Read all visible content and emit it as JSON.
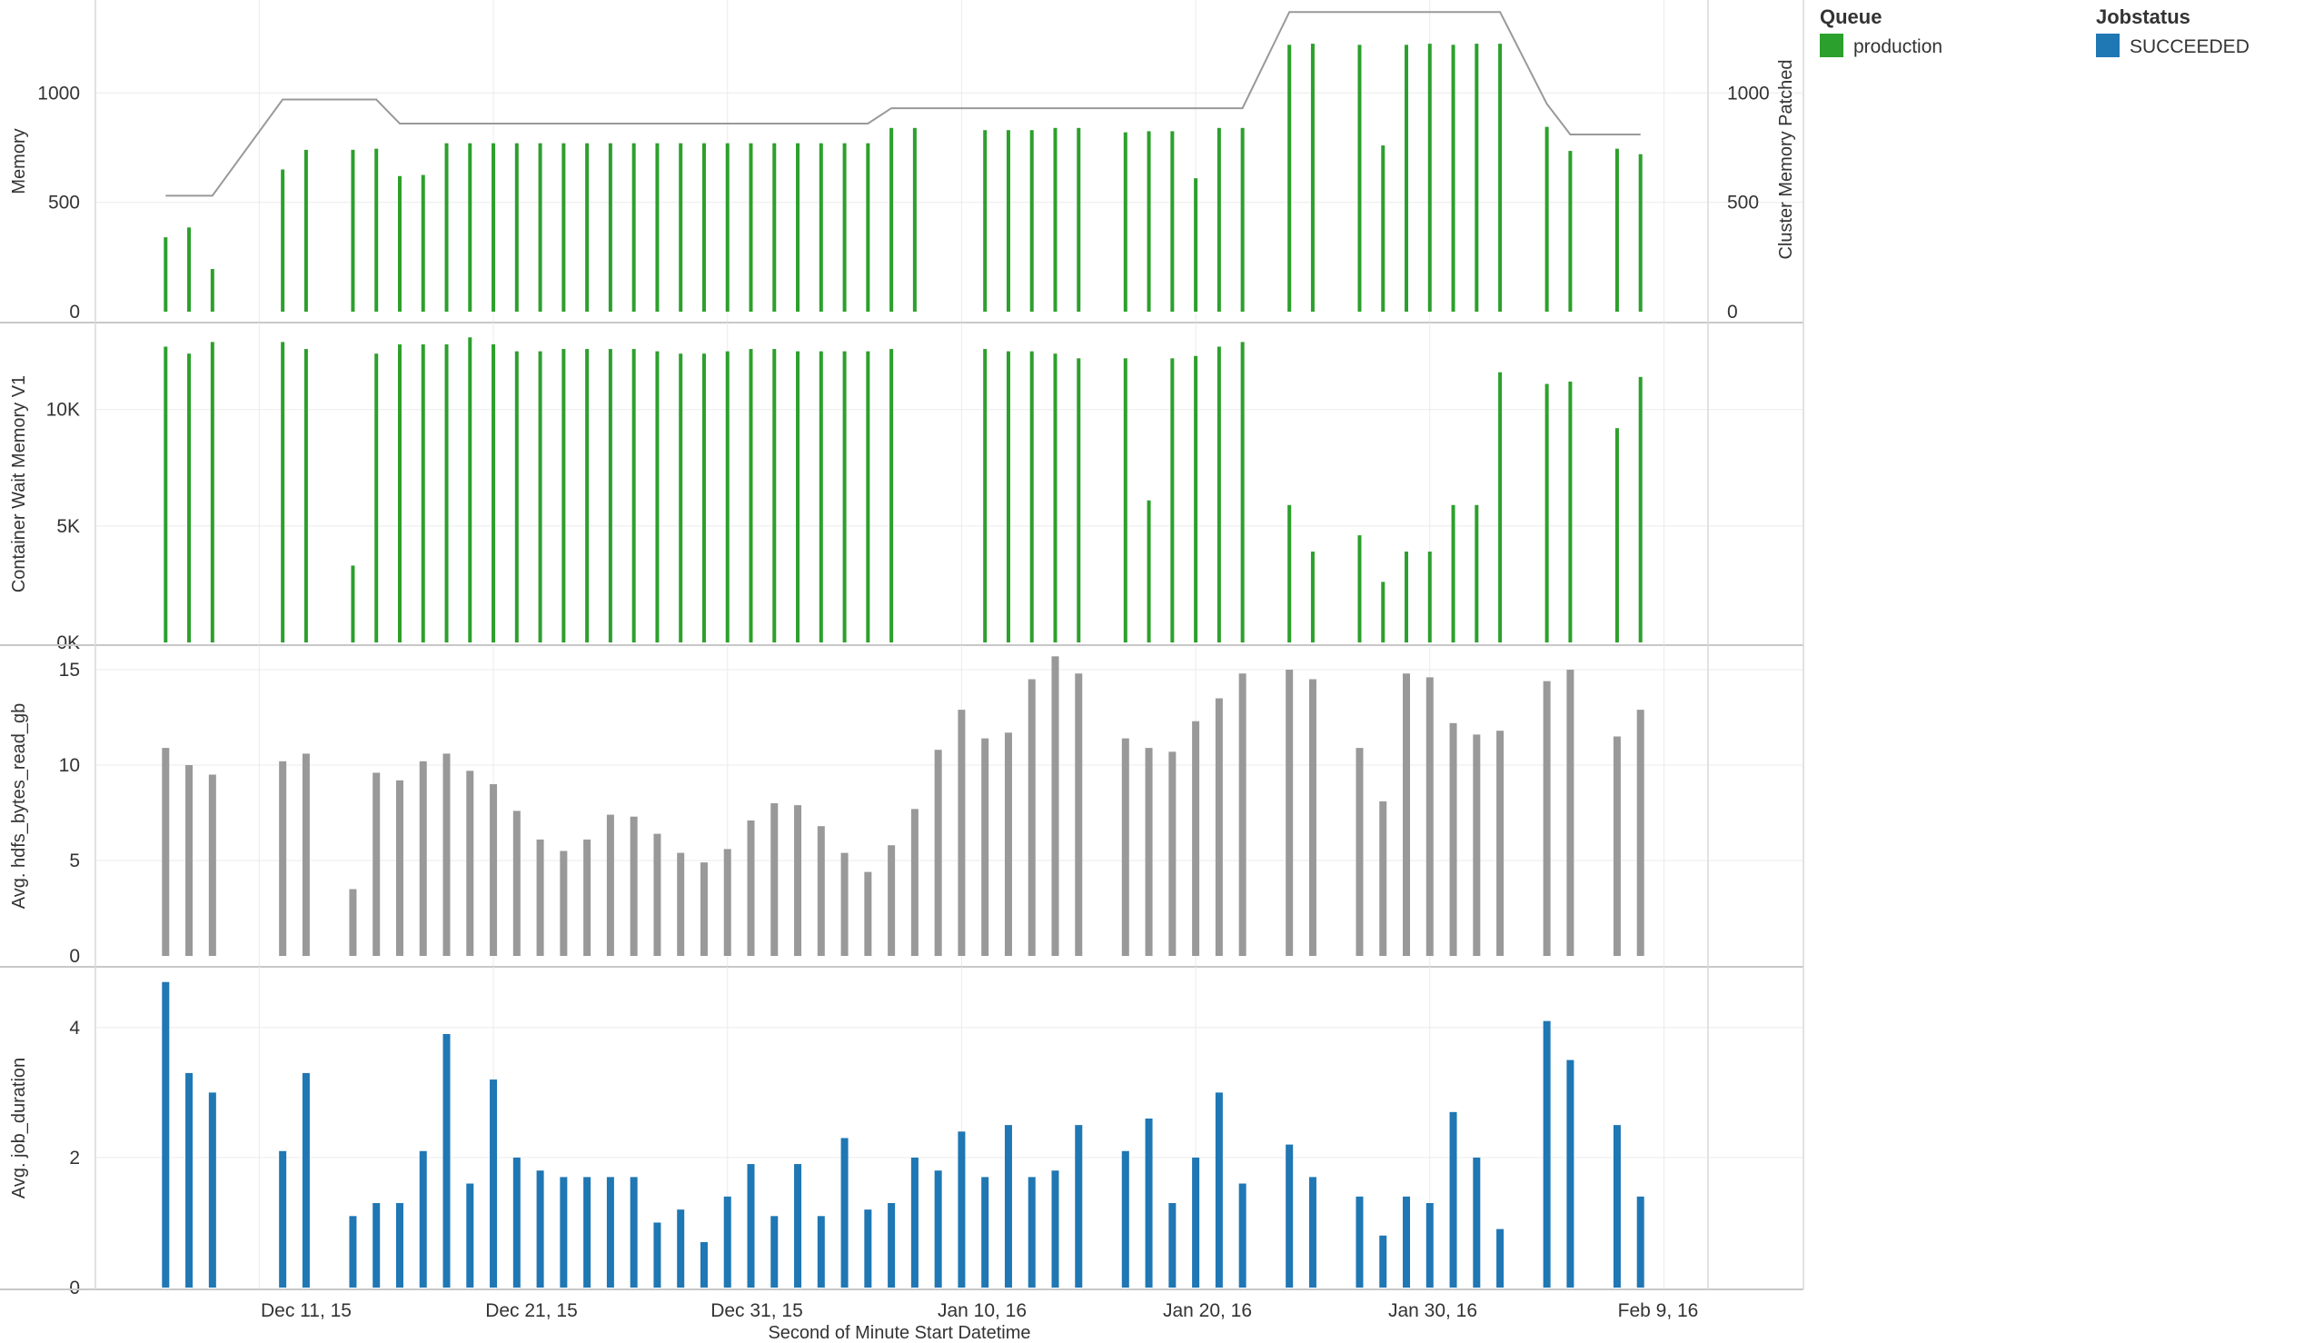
{
  "xlabel": "Second of Minute Start Datetime",
  "x_ticks": [
    "Dec 11, 15",
    "Dec 21, 15",
    "Dec 31, 15",
    "Jan 10, 16",
    "Jan 20, 16",
    "Jan 30, 16",
    "Feb 9, 16"
  ],
  "legend": {
    "queue_title": "Queue",
    "queue_item": "production",
    "queue_color": "#2ca02c",
    "status_title": "Jobstatus",
    "status_item": "SUCCEEDED",
    "status_color": "#1f77b4"
  },
  "chart_data": [
    {
      "type": "bar",
      "ylabel": "Memory",
      "y2label": "Cluster Memory Patched",
      "yticks": [
        "0",
        "500",
        "1000"
      ],
      "y2ticks": [
        "0",
        "500",
        "1000"
      ],
      "ylim": [
        0,
        1400
      ],
      "color": "#2ca02c",
      "line_color": "#999999",
      "x_range": [
        "2015-12-04",
        "2016-02-11"
      ],
      "bars": [
        [
          "2015-12-07",
          340
        ],
        [
          "2015-12-08",
          385
        ],
        [
          "2015-12-09",
          195
        ],
        [
          "2015-12-12",
          650
        ],
        [
          "2015-12-13",
          740
        ],
        [
          "2015-12-15",
          740
        ],
        [
          "2015-12-16",
          745
        ],
        [
          "2015-12-17",
          620
        ],
        [
          "2015-12-18",
          625
        ],
        [
          "2015-12-19",
          770
        ],
        [
          "2015-12-20",
          770
        ],
        [
          "2015-12-21",
          770
        ],
        [
          "2015-12-22",
          770
        ],
        [
          "2015-12-23",
          770
        ],
        [
          "2015-12-24",
          770
        ],
        [
          "2015-12-25",
          770
        ],
        [
          "2015-12-26",
          770
        ],
        [
          "2015-12-27",
          770
        ],
        [
          "2015-12-28",
          770
        ],
        [
          "2015-12-29",
          770
        ],
        [
          "2015-12-30",
          770
        ],
        [
          "2015-12-31",
          770
        ],
        [
          "2016-01-01",
          770
        ],
        [
          "2016-01-02",
          770
        ],
        [
          "2016-01-03",
          770
        ],
        [
          "2016-01-04",
          770
        ],
        [
          "2016-01-05",
          770
        ],
        [
          "2016-01-06",
          770
        ],
        [
          "2016-01-07",
          840
        ],
        [
          "2016-01-08",
          840
        ],
        [
          "2016-01-11",
          830
        ],
        [
          "2016-01-12",
          830
        ],
        [
          "2016-01-13",
          830
        ],
        [
          "2016-01-14",
          840
        ],
        [
          "2016-01-15",
          840
        ],
        [
          "2016-01-17",
          820
        ],
        [
          "2016-01-18",
          825
        ],
        [
          "2016-01-19",
          825
        ],
        [
          "2016-01-20",
          610
        ],
        [
          "2016-01-21",
          840
        ],
        [
          "2016-01-22",
          840
        ],
        [
          "2016-01-24",
          1220
        ],
        [
          "2016-01-25",
          1225
        ],
        [
          "2016-01-27",
          1220
        ],
        [
          "2016-01-28",
          760
        ],
        [
          "2016-01-29",
          1220
        ],
        [
          "2016-01-30",
          1225
        ],
        [
          "2016-01-31",
          1220
        ],
        [
          "2016-02-01",
          1225
        ],
        [
          "2016-02-02",
          1225
        ],
        [
          "2016-02-04",
          845
        ],
        [
          "2016-02-05",
          735
        ],
        [
          "2016-02-07",
          745
        ],
        [
          "2016-02-08",
          720
        ]
      ],
      "line": [
        [
          "2015-12-07",
          530
        ],
        [
          "2015-12-09",
          530
        ],
        [
          "2015-12-12",
          970
        ],
        [
          "2015-12-16",
          970
        ],
        [
          "2015-12-17",
          860
        ],
        [
          "2016-01-06",
          860
        ],
        [
          "2016-01-07",
          930
        ],
        [
          "2016-01-22",
          930
        ],
        [
          "2016-01-24",
          1370
        ],
        [
          "2016-02-02",
          1370
        ],
        [
          "2016-02-04",
          950
        ],
        [
          "2016-02-05",
          810
        ],
        [
          "2016-02-08",
          810
        ]
      ]
    },
    {
      "type": "bar",
      "ylabel": "Container Wait Memory V1",
      "yticks": [
        "0K",
        "5K",
        "10K"
      ],
      "ylim": [
        0,
        13500
      ],
      "color": "#2ca02c",
      "x_range": [
        "2015-12-04",
        "2016-02-11"
      ],
      "bars": [
        [
          "2015-12-07",
          12700
        ],
        [
          "2015-12-08",
          12400
        ],
        [
          "2015-12-09",
          12900
        ],
        [
          "2015-12-12",
          12900
        ],
        [
          "2015-12-13",
          12600
        ],
        [
          "2015-12-15",
          3300
        ],
        [
          "2015-12-16",
          12400
        ],
        [
          "2015-12-17",
          12800
        ],
        [
          "2015-12-18",
          12800
        ],
        [
          "2015-12-19",
          12800
        ],
        [
          "2015-12-20",
          13100
        ],
        [
          "2015-12-21",
          12800
        ],
        [
          "2015-12-22",
          12500
        ],
        [
          "2015-12-23",
          12500
        ],
        [
          "2015-12-24",
          12600
        ],
        [
          "2015-12-25",
          12600
        ],
        [
          "2015-12-26",
          12600
        ],
        [
          "2015-12-27",
          12600
        ],
        [
          "2015-12-28",
          12500
        ],
        [
          "2015-12-29",
          12400
        ],
        [
          "2015-12-30",
          12400
        ],
        [
          "2015-12-31",
          12500
        ],
        [
          "2016-01-01",
          12600
        ],
        [
          "2016-01-02",
          12600
        ],
        [
          "2016-01-03",
          12500
        ],
        [
          "2016-01-04",
          12500
        ],
        [
          "2016-01-05",
          12500
        ],
        [
          "2016-01-06",
          12500
        ],
        [
          "2016-01-07",
          12600
        ],
        [
          "2016-01-11",
          12600
        ],
        [
          "2016-01-12",
          12500
        ],
        [
          "2016-01-13",
          12500
        ],
        [
          "2016-01-14",
          12400
        ],
        [
          "2016-01-15",
          12200
        ],
        [
          "2016-01-17",
          12200
        ],
        [
          "2016-01-18",
          6100
        ],
        [
          "2016-01-19",
          12200
        ],
        [
          "2016-01-20",
          12300
        ],
        [
          "2016-01-21",
          12700
        ],
        [
          "2016-01-22",
          12900
        ],
        [
          "2016-01-24",
          5900
        ],
        [
          "2016-01-25",
          3900
        ],
        [
          "2016-01-27",
          4600
        ],
        [
          "2016-01-28",
          2600
        ],
        [
          "2016-01-29",
          3900
        ],
        [
          "2016-01-30",
          3900
        ],
        [
          "2016-01-31",
          5900
        ],
        [
          "2016-02-01",
          5900
        ],
        [
          "2016-02-02",
          11600
        ],
        [
          "2016-02-04",
          11100
        ],
        [
          "2016-02-05",
          11200
        ],
        [
          "2016-02-07",
          9200
        ],
        [
          "2016-02-08",
          11400
        ]
      ]
    },
    {
      "type": "bar",
      "ylabel": "Avg. hdfs_bytes_read_gb",
      "yticks": [
        "0",
        "5",
        "10",
        "15"
      ],
      "ylim": [
        0,
        16
      ],
      "color": "#999999",
      "x_range": [
        "2015-12-04",
        "2016-02-11"
      ],
      "bars": [
        [
          "2015-12-07",
          10.9
        ],
        [
          "2015-12-08",
          10.0
        ],
        [
          "2015-12-09",
          9.5
        ],
        [
          "2015-12-12",
          10.2
        ],
        [
          "2015-12-13",
          10.6
        ],
        [
          "2015-12-15",
          3.5
        ],
        [
          "2015-12-16",
          9.6
        ],
        [
          "2015-12-17",
          9.2
        ],
        [
          "2015-12-18",
          10.2
        ],
        [
          "2015-12-19",
          10.6
        ],
        [
          "2015-12-20",
          9.7
        ],
        [
          "2015-12-21",
          9.0
        ],
        [
          "2015-12-22",
          7.6
        ],
        [
          "2015-12-23",
          6.1
        ],
        [
          "2015-12-24",
          5.5
        ],
        [
          "2015-12-25",
          6.1
        ],
        [
          "2015-12-26",
          7.4
        ],
        [
          "2015-12-27",
          7.3
        ],
        [
          "2015-12-28",
          6.4
        ],
        [
          "2015-12-29",
          5.4
        ],
        [
          "2015-12-30",
          4.9
        ],
        [
          "2015-12-31",
          5.6
        ],
        [
          "2016-01-01",
          7.1
        ],
        [
          "2016-01-02",
          8.0
        ],
        [
          "2016-01-03",
          7.9
        ],
        [
          "2016-01-04",
          6.8
        ],
        [
          "2016-01-05",
          5.4
        ],
        [
          "2016-01-06",
          4.4
        ],
        [
          "2016-01-07",
          5.8
        ],
        [
          "2016-01-08",
          7.7
        ],
        [
          "2016-01-09",
          10.8
        ],
        [
          "2016-01-10",
          12.9
        ],
        [
          "2016-01-11",
          11.4
        ],
        [
          "2016-01-12",
          11.7
        ],
        [
          "2016-01-13",
          14.5
        ],
        [
          "2016-01-14",
          15.7
        ],
        [
          "2016-01-15",
          14.8
        ],
        [
          "2016-01-17",
          11.4
        ],
        [
          "2016-01-18",
          10.9
        ],
        [
          "2016-01-19",
          10.7
        ],
        [
          "2016-01-20",
          12.3
        ],
        [
          "2016-01-21",
          13.5
        ],
        [
          "2016-01-22",
          14.8
        ],
        [
          "2016-01-24",
          15.0
        ],
        [
          "2016-01-25",
          14.5
        ],
        [
          "2016-01-27",
          10.9
        ],
        [
          "2016-01-28",
          8.1
        ],
        [
          "2016-01-29",
          14.8
        ],
        [
          "2016-01-30",
          14.6
        ],
        [
          "2016-01-31",
          12.2
        ],
        [
          "2016-02-01",
          11.6
        ],
        [
          "2016-02-02",
          11.8
        ],
        [
          "2016-02-04",
          14.4
        ],
        [
          "2016-02-05",
          15.0
        ],
        [
          "2016-02-07",
          11.5
        ],
        [
          "2016-02-08",
          12.9
        ]
      ]
    },
    {
      "type": "bar",
      "ylabel": "Avg. job_duration",
      "yticks": [
        "0",
        "2",
        "4"
      ],
      "ylim": [
        0,
        4.85
      ],
      "color": "#1f77b4",
      "x_range": [
        "2015-12-04",
        "2016-02-11"
      ],
      "bars": [
        [
          "2015-12-07",
          4.7
        ],
        [
          "2015-12-08",
          3.3
        ],
        [
          "2015-12-09",
          3.0
        ],
        [
          "2015-12-12",
          2.1
        ],
        [
          "2015-12-13",
          3.3
        ],
        [
          "2015-12-15",
          1.1
        ],
        [
          "2015-12-16",
          1.3
        ],
        [
          "2015-12-17",
          1.3
        ],
        [
          "2015-12-18",
          2.1
        ],
        [
          "2015-12-19",
          3.9
        ],
        [
          "2015-12-20",
          1.6
        ],
        [
          "2015-12-21",
          3.2
        ],
        [
          "2015-12-22",
          2.0
        ],
        [
          "2015-12-23",
          1.8
        ],
        [
          "2015-12-24",
          1.7
        ],
        [
          "2015-12-25",
          1.7
        ],
        [
          "2015-12-26",
          1.7
        ],
        [
          "2015-12-27",
          1.7
        ],
        [
          "2015-12-28",
          1.0
        ],
        [
          "2015-12-29",
          1.2
        ],
        [
          "2015-12-30",
          0.7
        ],
        [
          "2015-12-31",
          1.4
        ],
        [
          "2016-01-01",
          1.9
        ],
        [
          "2016-01-02",
          1.1
        ],
        [
          "2016-01-03",
          1.9
        ],
        [
          "2016-01-04",
          1.1
        ],
        [
          "2016-01-05",
          2.3
        ],
        [
          "2016-01-06",
          1.2
        ],
        [
          "2016-01-07",
          1.3
        ],
        [
          "2016-01-08",
          2.0
        ],
        [
          "2016-01-09",
          1.8
        ],
        [
          "2016-01-10",
          2.4
        ],
        [
          "2016-01-11",
          1.7
        ],
        [
          "2016-01-12",
          2.5
        ],
        [
          "2016-01-13",
          1.7
        ],
        [
          "2016-01-14",
          1.8
        ],
        [
          "2016-01-15",
          2.5
        ],
        [
          "2016-01-17",
          2.1
        ],
        [
          "2016-01-18",
          2.6
        ],
        [
          "2016-01-19",
          1.3
        ],
        [
          "2016-01-20",
          2.0
        ],
        [
          "2016-01-21",
          3.0
        ],
        [
          "2016-01-22",
          1.6
        ],
        [
          "2016-01-24",
          2.2
        ],
        [
          "2016-01-25",
          1.7
        ],
        [
          "2016-01-27",
          1.4
        ],
        [
          "2016-01-28",
          0.8
        ],
        [
          "2016-01-29",
          1.4
        ],
        [
          "2016-01-30",
          1.3
        ],
        [
          "2016-01-31",
          2.7
        ],
        [
          "2016-02-01",
          2.0
        ],
        [
          "2016-02-02",
          0.9
        ],
        [
          "2016-02-04",
          4.1
        ],
        [
          "2016-02-05",
          3.5
        ],
        [
          "2016-02-07",
          2.5
        ],
        [
          "2016-02-08",
          1.4
        ]
      ]
    }
  ]
}
